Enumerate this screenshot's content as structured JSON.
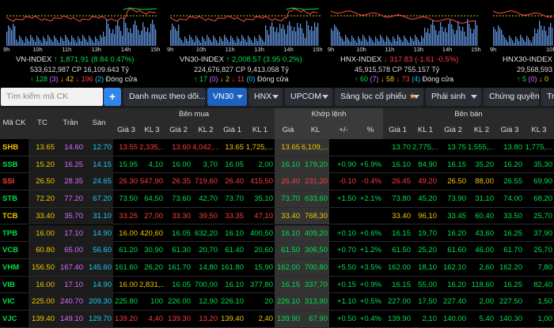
{
  "indices": [
    {
      "name": "VN-INDEX",
      "arrow": "↑",
      "value": "1,871.91",
      "change": "(8.84 0.47%)",
      "vol": "533,612,987",
      "cp_label": "CP",
      "value_cp": "16,109.643",
      "unit": "Tỷ",
      "up": "↑ 128",
      "up_n": "(3)",
      "down": "↓ 42",
      "flat": "↓ 196",
      "flat_n": "(2)",
      "status": "Đóng cửa",
      "dir": "up",
      "times": [
        "9h",
        "10h",
        "11h",
        "13h",
        "14h",
        "15h"
      ]
    },
    {
      "name": "VN30-INDEX",
      "arrow": "↑",
      "value": "2,008.57",
      "change": "(3.95 0.2%)",
      "vol": "224,676,827",
      "cp_label": "CP",
      "value_cp": "9,413.058",
      "unit": "Tỷ",
      "up": "↑ 17",
      "up_n": "(0)",
      "down": "↓ 2",
      "flat": "↓ 11",
      "flat_n": "(0)",
      "status": "Đóng cửa",
      "dir": "up",
      "times": [
        "9h",
        "10h",
        "11h",
        "13h",
        "14h",
        "15h"
      ]
    },
    {
      "name": "HNX-INDEX",
      "arrow": "↓",
      "value": "317.83",
      "change": "(-1.61 -0.5%)",
      "vol": "45,915,578",
      "cp_label": "CP",
      "value_cp": "755.157",
      "unit": "Tỷ",
      "up": "↑ 60",
      "up_n": "(7)",
      "down": "↓ 58",
      "flat": "↓ 73",
      "flat_n": "(4)",
      "status": "Đóng cửa",
      "dir": "down",
      "times": [
        "9h",
        "10h",
        "11h",
        "13h",
        "14h",
        "15h"
      ]
    },
    {
      "name": "HNX30-INDEX",
      "arrow": "↓",
      "value": "",
      "change": "",
      "vol": "29,568,593",
      "cp_label": "",
      "value_cp": "",
      "unit": "",
      "up": "↑ 5",
      "up_n": "(0)",
      "down": "↓ 0",
      "flat": "",
      "flat_n": "",
      "status": "",
      "dir": "down",
      "times": [
        "9h",
        "10h"
      ]
    }
  ],
  "toolbar": {
    "search_placeholder": "Tìm kiếm mã CK",
    "plus": "+",
    "watchlist": "Danh mục theo dõi...",
    "vn30": "VN30",
    "hnx": "HNX",
    "upcom": "UPCOM",
    "filter": "Sàng lọc cổ phiếu",
    "derivative": "Phái sinh",
    "cw": "Chứng quyền",
    "more": "Tr"
  },
  "headers": {
    "symbol": "Mã CK",
    "tc": "TC",
    "tran": "Trần",
    "san": "Sàn",
    "buy": "Bên mua",
    "match": "Khớp lệnh",
    "sell": "Bên bán",
    "bp3": "Giá 3",
    "bv3": "KL 3",
    "bp2": "Giá 2",
    "bv2": "KL 2",
    "bp1": "Giá 1",
    "bv1": "KL 1",
    "mp": "Giá",
    "mv": "KL",
    "chg": "+/-",
    "pct": "%",
    "sp1": "Giá 1",
    "sv1": "KL 1",
    "sp2": "Giá 2",
    "sv2": "KL 2",
    "sp3": "Giá 3",
    "sv3": "KL 3"
  },
  "rows": [
    {
      "sym": "SHB",
      "sc": "ref",
      "tc": "13.65",
      "tran": "14.60",
      "san": "12.70",
      "bp3": "13.55",
      "bp3c": "down",
      "bv3": "2,335,...",
      "bp2": "13.60",
      "bp2c": "down",
      "bv2": "4,042,...",
      "bp1": "13.65",
      "bp1c": "ref",
      "bv1": "1,725,...",
      "mp": "13.65",
      "mc": "ref",
      "mv": "6,109,...",
      "chg": "",
      "pct": "",
      "sp1": "13.70",
      "sp1c": "up",
      "sv1": "2,775,...",
      "sp2": "13.75",
      "sp2c": "up",
      "sv2": "1,555,...",
      "sp3": "13.80",
      "sp3c": "up",
      "sv3": "1,775,..."
    },
    {
      "sym": "SSB",
      "sc": "up",
      "tc": "15.20",
      "tran": "16.25",
      "san": "14.15",
      "bp3": "15.95",
      "bp3c": "up",
      "bv3": "4,10",
      "bp2": "16.00",
      "bp2c": "up",
      "bv2": "3,70",
      "bp1": "16.05",
      "bp1c": "up",
      "bv1": "2,00",
      "mp": "16.10",
      "mc": "up",
      "mv": "179,20",
      "chg": "+0.90",
      "pct": "+5.9%",
      "sp1": "16.10",
      "sp1c": "up",
      "sv1": "84,90",
      "sp2": "16.15",
      "sp2c": "up",
      "sv2": "35,20",
      "sp3": "16.20",
      "sp3c": "up",
      "sv3": "35,30"
    },
    {
      "sym": "SSI",
      "sc": "down",
      "tc": "26.50",
      "tran": "28.35",
      "san": "24.65",
      "bp3": "26.30",
      "bp3c": "down",
      "bv3": "547,90",
      "bp2": "26.35",
      "bp2c": "down",
      "bv2": "719,60",
      "bp1": "26.40",
      "bp1c": "down",
      "bv1": "415,50",
      "mp": "26.40",
      "mc": "down",
      "mv": "231,20",
      "chg": "-0.10",
      "pct": "-0.4%",
      "sp1": "26.45",
      "sp1c": "down",
      "sv1": "49,20",
      "sp2": "26.50",
      "sp2c": "ref",
      "sv2": "88,00",
      "sp3": "26.55",
      "sp3c": "up",
      "sv3": "69,90"
    },
    {
      "sym": "STB",
      "sc": "up",
      "tc": "72.20",
      "tran": "77.20",
      "san": "67.20",
      "bp3": "73.50",
      "bp3c": "up",
      "bv3": "64,50",
      "bp2": "73.60",
      "bp2c": "up",
      "bv2": "42,70",
      "bp1": "73.70",
      "bp1c": "up",
      "bv1": "35,10",
      "mp": "73.70",
      "mc": "up",
      "mv": "633,60",
      "chg": "+1.50",
      "pct": "+2.1%",
      "sp1": "73.80",
      "sp1c": "up",
      "sv1": "45,20",
      "sp2": "73.90",
      "sp2c": "up",
      "sv2": "31,10",
      "sp3": "74.00",
      "sp3c": "up",
      "sv3": "68,20"
    },
    {
      "sym": "TCB",
      "sc": "ref",
      "tc": "33.40",
      "tran": "35.70",
      "san": "31.10",
      "bp3": "33.25",
      "bp3c": "down",
      "bv3": "27,00",
      "bp2": "33.30",
      "bp2c": "down",
      "bv2": "39,50",
      "bp1": "33.35",
      "bp1c": "down",
      "bv1": "47,10",
      "mp": "33.40",
      "mc": "ref",
      "mv": "768,30",
      "chg": "",
      "pct": "",
      "sp1": "33.40",
      "sp1c": "ref",
      "sv1": "96,10",
      "sp2": "33.45",
      "sp2c": "up",
      "sv2": "60,40",
      "sp3": "33.50",
      "sp3c": "up",
      "sv3": "25,70"
    },
    {
      "sym": "TPB",
      "sc": "up",
      "tc": "16.00",
      "tran": "17.10",
      "san": "14.90",
      "bp3": "16.00",
      "bp3c": "ref",
      "bv3": "420,60",
      "bp2": "16.05",
      "bp2c": "up",
      "bv2": "632,20",
      "bp1": "16.10",
      "bp1c": "up",
      "bv1": "400,50",
      "mp": "16.10",
      "mc": "up",
      "mv": "409,20",
      "chg": "+0.10",
      "pct": "+0.6%",
      "sp1": "16.15",
      "sp1c": "up",
      "sv1": "19,70",
      "sp2": "16.20",
      "sp2c": "up",
      "sv2": "43,60",
      "sp3": "16.25",
      "sp3c": "up",
      "sv3": "37,90"
    },
    {
      "sym": "VCB",
      "sc": "up",
      "tc": "60.80",
      "tran": "65.00",
      "san": "56.60",
      "bp3": "61.20",
      "bp3c": "up",
      "bv3": "30,90",
      "bp2": "61.30",
      "bp2c": "up",
      "bv2": "20,70",
      "bp1": "61.40",
      "bp1c": "up",
      "bv1": "20,60",
      "mp": "61.50",
      "mc": "up",
      "mv": "306,50",
      "chg": "+0.70",
      "pct": "+1.2%",
      "sp1": "61.50",
      "sp1c": "up",
      "sv1": "25,20",
      "sp2": "61.60",
      "sp2c": "up",
      "sv2": "46,00",
      "sp3": "61.70",
      "sp3c": "up",
      "sv3": "25,70"
    },
    {
      "sym": "VHM",
      "sc": "up",
      "tc": "156.50",
      "tran": "167.40",
      "san": "145.60",
      "bp3": "161.60",
      "bp3c": "up",
      "bv3": "26,20",
      "bp2": "161.70",
      "bp2c": "up",
      "bv2": "14,80",
      "bp1": "161.80",
      "bp1c": "up",
      "bv1": "15,90",
      "mp": "162.00",
      "mc": "up",
      "mv": "700,80",
      "chg": "+5.50",
      "pct": "+3.5%",
      "sp1": "162.00",
      "sp1c": "up",
      "sv1": "18,10",
      "sp2": "162.10",
      "sp2c": "up",
      "sv2": "2,60",
      "sp3": "162.20",
      "sp3c": "up",
      "sv3": "7,80"
    },
    {
      "sym": "VIB",
      "sc": "up",
      "tc": "16.00",
      "tran": "17.10",
      "san": "14.90",
      "bp3": "16.00",
      "bp3c": "ref",
      "bv3": "2,831,...",
      "bp2": "16.05",
      "bp2c": "up",
      "bv2": "700,00",
      "bp1": "16.10",
      "bp1c": "up",
      "bv1": "377,80",
      "mp": "16.15",
      "mc": "up",
      "mv": "337,70",
      "chg": "+0.15",
      "pct": "+0.9%",
      "sp1": "16.15",
      "sp1c": "up",
      "sv1": "55,00",
      "sp2": "16.20",
      "sp2c": "up",
      "sv2": "118,60",
      "sp3": "16.25",
      "sp3c": "up",
      "sv3": "82,40"
    },
    {
      "sym": "VIC",
      "sc": "up",
      "tc": "225.00",
      "tran": "240.70",
      "san": "209.30",
      "bp3": "225.80",
      "bp3c": "up",
      "bv3": "100",
      "bp2": "226.00",
      "bp2c": "up",
      "bv2": "12,90",
      "bp1": "226.10",
      "bp1c": "up",
      "bv1": "20",
      "mp": "226.10",
      "mc": "up",
      "mv": "313,90",
      "chg": "+1.10",
      "pct": "+0.5%",
      "sp1": "227.00",
      "sp1c": "up",
      "sv1": "17,50",
      "sp2": "227.40",
      "sp2c": "up",
      "sv2": "2,00",
      "sp3": "227.50",
      "sp3c": "up",
      "sv3": "1,50"
    },
    {
      "sym": "VJC",
      "sc": "up",
      "tc": "139.40",
      "tran": "149.10",
      "san": "129.70",
      "bp3": "139.20",
      "bp3c": "down",
      "bv3": "4,40",
      "bp2": "139.30",
      "bp2c": "down",
      "bv2": "13,20",
      "bp1": "139.40",
      "bp1c": "ref",
      "bv1": "2,40",
      "mp": "139.90",
      "mc": "up",
      "mv": "67,90",
      "chg": "+0.50",
      "pct": "+0.4%",
      "sp1": "139.90",
      "sp1c": "up",
      "sv1": "2,10",
      "sp2": "140.00",
      "sp2c": "up",
      "sv2": "5,40",
      "sp3": "140.30",
      "sp3c": "up",
      "sv3": "1,00"
    }
  ],
  "colors": {
    "up": "#00e04a",
    "down": "#ff3b3b",
    "ref": "#f2c500",
    "ceil": "#d86bff",
    "floor": "#19c9f0",
    "accent": "#1e62c0"
  }
}
